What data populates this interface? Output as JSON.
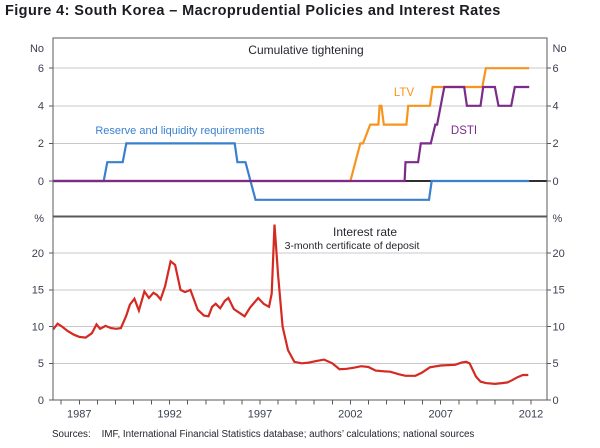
{
  "figure": {
    "title": "Figure 4: South Korea – Macroprudential Policies and Interest Rates",
    "sources_label": "Sources:",
    "sources_text": "IMF, International Financial Statistics database; authors’ calculations; national sources"
  },
  "colors": {
    "reserve_blue": "#3a80cf",
    "ltv_orange": "#f7941e",
    "dsti_purple": "#7b2b8b",
    "rate_red": "#d42a22",
    "grid": "#c8c8c8",
    "frame": "#58585a",
    "zero_line": "#2f2f33",
    "tick_text": "#3a3f50",
    "label_text": "#26262e"
  },
  "chart_data": [
    {
      "type": "line",
      "panel": "top",
      "title": "Cumulative tightening",
      "unit_label": "No",
      "ylim": [
        -1.89,
        7.61
      ],
      "yticks": [
        0,
        2,
        4,
        6
      ],
      "x_domain": [
        1985.55,
        2012.9
      ],
      "xticks_labeled": [
        1987,
        1992,
        1997,
        2002,
        2007,
        2012
      ],
      "grid": "horizontal",
      "zero_line": true,
      "legend_position": "inline-labels",
      "series": [
        {
          "name": "Reserve and liquidity requirements",
          "color_key": "reserve_blue",
          "points": [
            [
              1985.55,
              0
            ],
            [
              1988.35,
              0
            ],
            [
              1988.55,
              1
            ],
            [
              1989.4,
              1
            ],
            [
              1989.6,
              2
            ],
            [
              1995.6,
              2
            ],
            [
              1995.75,
              1
            ],
            [
              1996.2,
              1
            ],
            [
              1996.75,
              -1
            ],
            [
              2006.35,
              -1
            ],
            [
              2006.5,
              0
            ],
            [
              2011.9,
              0
            ]
          ]
        },
        {
          "name": "LTV",
          "color_key": "ltv_orange",
          "points": [
            [
              1985.55,
              0
            ],
            [
              2002.0,
              0
            ],
            [
              2002.55,
              2
            ],
            [
              2002.7,
              2
            ],
            [
              2003.1,
              3
            ],
            [
              2003.55,
              3
            ],
            [
              2003.62,
              4
            ],
            [
              2003.72,
              4
            ],
            [
              2003.85,
              3
            ],
            [
              2005.1,
              3
            ],
            [
              2005.2,
              4
            ],
            [
              2006.4,
              4
            ],
            [
              2006.55,
              5
            ],
            [
              2009.3,
              5
            ],
            [
              2009.5,
              6
            ],
            [
              2011.9,
              6
            ]
          ]
        },
        {
          "name": "DSTI",
          "color_key": "dsti_purple",
          "points": [
            [
              1985.55,
              0
            ],
            [
              2005.0,
              0
            ],
            [
              2005.05,
              1
            ],
            [
              2005.75,
              1
            ],
            [
              2005.9,
              2
            ],
            [
              2006.45,
              2
            ],
            [
              2006.7,
              3
            ],
            [
              2006.8,
              3
            ],
            [
              2007.2,
              5
            ],
            [
              2008.3,
              5
            ],
            [
              2008.45,
              4
            ],
            [
              2009.2,
              4
            ],
            [
              2009.35,
              5
            ],
            [
              2010.0,
              5
            ],
            [
              2010.2,
              4
            ],
            [
              2010.9,
              4
            ],
            [
              2011.1,
              5
            ],
            [
              2011.9,
              5
            ]
          ]
        }
      ]
    },
    {
      "type": "line",
      "panel": "bottom",
      "title": "Interest rate",
      "subtitle": "3-month certificate of deposit",
      "unit_label": "%",
      "ylim": [
        0,
        25
      ],
      "yticks": [
        0,
        5,
        10,
        15,
        20
      ],
      "x_domain": [
        1985.55,
        2012.9
      ],
      "xticks_labeled": [
        1987,
        1992,
        1997,
        2002,
        2007,
        2012
      ],
      "grid": "horizontal",
      "series": [
        {
          "name": "3-month certificate of deposit rate",
          "color_key": "rate_red",
          "points": [
            [
              1985.55,
              9.6
            ],
            [
              1985.8,
              10.4
            ],
            [
              1986.05,
              10.0
            ],
            [
              1986.35,
              9.4
            ],
            [
              1986.7,
              8.9
            ],
            [
              1987.0,
              8.6
            ],
            [
              1987.35,
              8.5
            ],
            [
              1987.7,
              9.1
            ],
            [
              1987.95,
              10.3
            ],
            [
              1988.15,
              9.7
            ],
            [
              1988.45,
              10.1
            ],
            [
              1988.75,
              9.8
            ],
            [
              1989.05,
              9.7
            ],
            [
              1989.3,
              9.8
            ],
            [
              1989.6,
              11.5
            ],
            [
              1989.8,
              13.0
            ],
            [
              1990.05,
              13.8
            ],
            [
              1990.3,
              12.2
            ],
            [
              1990.6,
              14.8
            ],
            [
              1990.85,
              13.9
            ],
            [
              1991.1,
              14.6
            ],
            [
              1991.3,
              14.3
            ],
            [
              1991.5,
              13.7
            ],
            [
              1991.75,
              15.5
            ],
            [
              1992.05,
              18.9
            ],
            [
              1992.3,
              18.4
            ],
            [
              1992.6,
              15.0
            ],
            [
              1992.85,
              14.7
            ],
            [
              1993.15,
              15.0
            ],
            [
              1993.55,
              12.3
            ],
            [
              1993.9,
              11.5
            ],
            [
              1994.15,
              11.4
            ],
            [
              1994.35,
              12.7
            ],
            [
              1994.55,
              13.1
            ],
            [
              1994.8,
              12.5
            ],
            [
              1995.05,
              13.5
            ],
            [
              1995.25,
              13.9
            ],
            [
              1995.55,
              12.4
            ],
            [
              1995.85,
              11.9
            ],
            [
              1996.15,
              11.4
            ],
            [
              1996.45,
              12.6
            ],
            [
              1996.9,
              13.9
            ],
            [
              1997.2,
              13.1
            ],
            [
              1997.5,
              12.7
            ],
            [
              1997.65,
              14.5
            ],
            [
              1997.8,
              23.9
            ],
            [
              1998.0,
              17.0
            ],
            [
              1998.25,
              10.0
            ],
            [
              1998.55,
              6.8
            ],
            [
              1998.9,
              5.2
            ],
            [
              1999.3,
              5.0
            ],
            [
              1999.7,
              5.1
            ],
            [
              2000.1,
              5.3
            ],
            [
              2000.55,
              5.5
            ],
            [
              2001.0,
              5.0
            ],
            [
              2001.4,
              4.2
            ],
            [
              2001.8,
              4.25
            ],
            [
              2002.2,
              4.4
            ],
            [
              2002.6,
              4.6
            ],
            [
              2003.0,
              4.5
            ],
            [
              2003.4,
              4.0
            ],
            [
              2003.9,
              3.9
            ],
            [
              2004.2,
              3.85
            ],
            [
              2004.7,
              3.5
            ],
            [
              2005.05,
              3.3
            ],
            [
              2005.6,
              3.3
            ],
            [
              2005.95,
              3.7
            ],
            [
              2006.4,
              4.45
            ],
            [
              2007.0,
              4.7
            ],
            [
              2007.8,
              4.8
            ],
            [
              2008.15,
              5.1
            ],
            [
              2008.4,
              5.2
            ],
            [
              2008.6,
              5.0
            ],
            [
              2008.95,
              3.2
            ],
            [
              2009.2,
              2.5
            ],
            [
              2009.5,
              2.3
            ],
            [
              2010.0,
              2.2
            ],
            [
              2010.4,
              2.3
            ],
            [
              2010.7,
              2.4
            ],
            [
              2010.95,
              2.7
            ],
            [
              2011.25,
              3.1
            ],
            [
              2011.55,
              3.4
            ],
            [
              2011.85,
              3.4
            ]
          ]
        }
      ]
    }
  ]
}
